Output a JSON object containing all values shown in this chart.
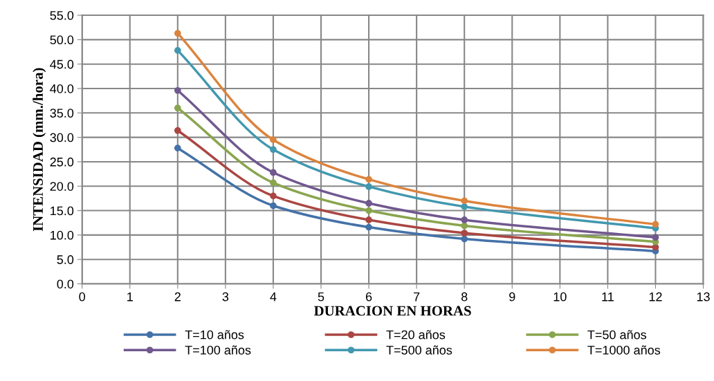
{
  "chart_data": {
    "type": "line",
    "xlabel": "DURACION EN HORAS",
    "ylabel": "INTENSIDAD (mm./hora)",
    "x": [
      2,
      4,
      6,
      8,
      12
    ],
    "series": [
      {
        "name": "T=10 años",
        "color": "#4472a8",
        "values": [
          27.8,
          16.0,
          11.6,
          9.2,
          6.7
        ]
      },
      {
        "name": "T=20 años",
        "color": "#aa4643",
        "values": [
          31.4,
          18.0,
          13.1,
          10.4,
          7.5
        ]
      },
      {
        "name": "T=50 años",
        "color": "#89a54e",
        "values": [
          36.0,
          20.7,
          15.0,
          11.9,
          8.6
        ]
      },
      {
        "name": "T=100 años",
        "color": "#71588f",
        "values": [
          39.6,
          22.8,
          16.5,
          13.1,
          9.5
        ]
      },
      {
        "name": "T=500 años",
        "color": "#4198af",
        "values": [
          47.8,
          27.5,
          19.9,
          15.8,
          11.4
        ]
      },
      {
        "name": "T=1000 años",
        "color": "#db843d",
        "values": [
          51.3,
          29.5,
          21.4,
          17.0,
          12.2
        ]
      }
    ],
    "xlim": [
      0,
      13
    ],
    "xticks": [
      0,
      1,
      2,
      3,
      4,
      5,
      6,
      7,
      8,
      9,
      10,
      11,
      12,
      13
    ],
    "ylim": [
      0,
      55
    ],
    "yticks": [
      {
        "value": 0,
        "label": "0.0"
      },
      {
        "value": 5,
        "label": "5.0"
      },
      {
        "value": 10,
        "label": "10.0"
      },
      {
        "value": 15,
        "label": "15.0"
      },
      {
        "value": 20,
        "label": "20.0"
      },
      {
        "value": 25,
        "label": "25.0"
      },
      {
        "value": 30,
        "label": "30.0"
      },
      {
        "value": 35,
        "label": "35.0"
      },
      {
        "value": 40,
        "label": "40.0"
      },
      {
        "value": 45,
        "label": "45.0"
      },
      {
        "value": 50,
        "label": "50.0"
      },
      {
        "value": 55,
        "label": "55.0"
      }
    ],
    "grid": true,
    "legend": "bottom",
    "marker": "circle",
    "line_style": "solid"
  }
}
